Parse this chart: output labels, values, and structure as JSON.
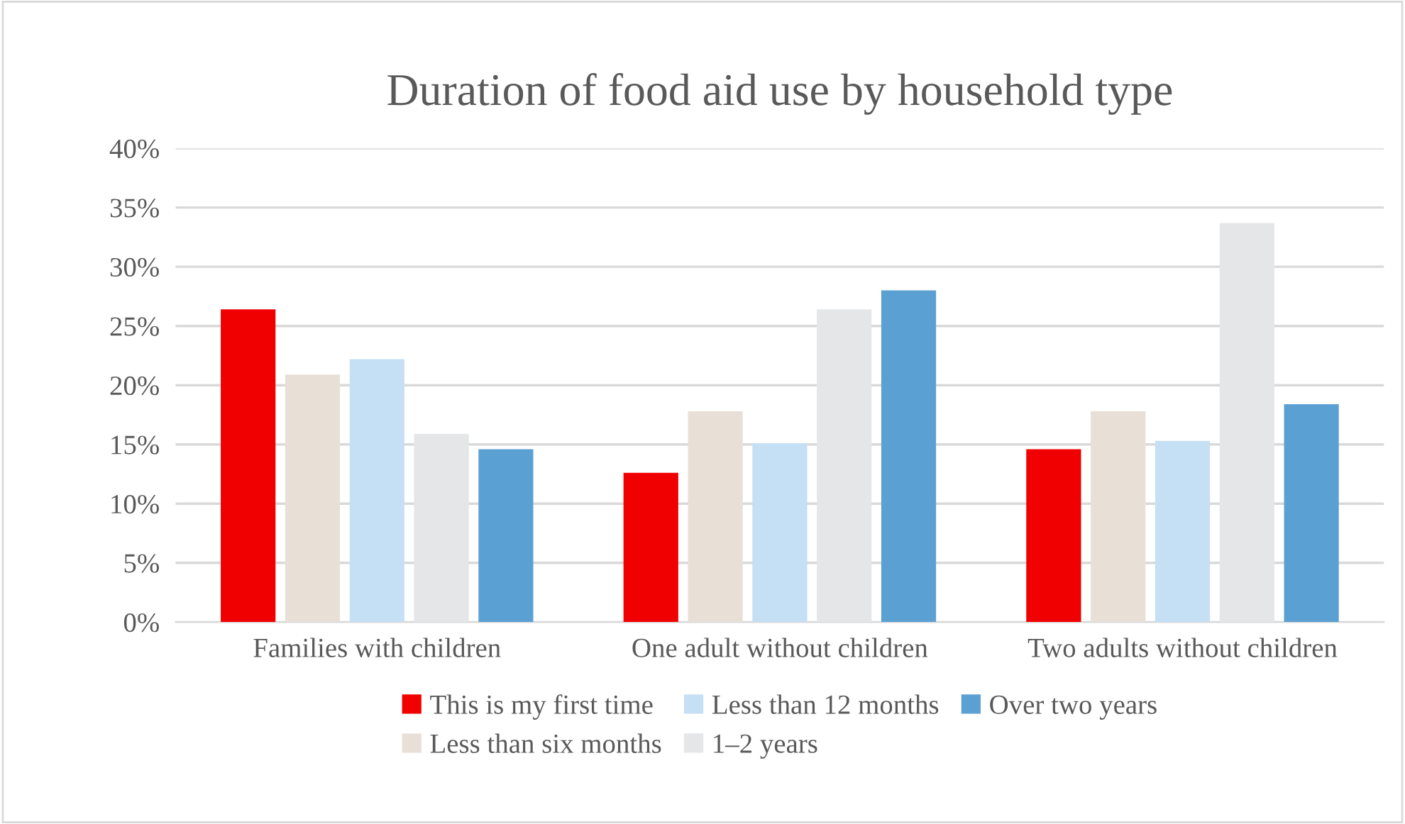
{
  "chart_data": {
    "type": "bar",
    "title": "Duration of food aid use by household type",
    "categories": [
      "Families with children",
      "One adult without children",
      "Two adults without children"
    ],
    "series": [
      {
        "name": "This is my first time",
        "color": "#f00000",
        "values": [
          26.4,
          12.6,
          14.6
        ]
      },
      {
        "name": "Less than six months",
        "color": "#e8e0d6",
        "values": [
          20.9,
          17.8,
          17.8
        ]
      },
      {
        "name": "Less than 12 months",
        "color": "#c5dff4",
        "values": [
          22.2,
          15.1,
          15.3
        ]
      },
      {
        "name": "1–2 years",
        "color": "#e5e6e8",
        "values": [
          15.9,
          26.4,
          33.7
        ]
      },
      {
        "name": "Over two years",
        "color": "#5aa0d3",
        "values": [
          14.6,
          28.0,
          18.4
        ]
      }
    ],
    "ylim": [
      0,
      40
    ],
    "yticks": [
      {
        "value": 0,
        "label": "0%"
      },
      {
        "value": 5,
        "label": "5%"
      },
      {
        "value": 10,
        "label": "10%"
      },
      {
        "value": 15,
        "label": "15%"
      },
      {
        "value": 20,
        "label": "20%"
      },
      {
        "value": 25,
        "label": "25%"
      },
      {
        "value": 30,
        "label": "30%"
      },
      {
        "value": 35,
        "label": "35%"
      },
      {
        "value": 40,
        "label": "40%"
      }
    ],
    "grid": "y",
    "legend": "bottom"
  }
}
